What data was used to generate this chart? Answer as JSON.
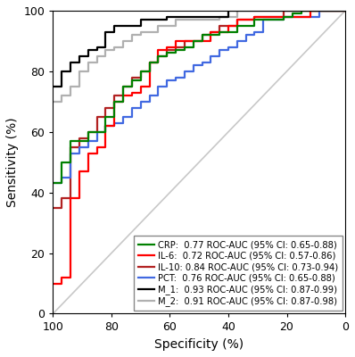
{
  "xlabel": "Specificity (%)",
  "ylabel": "Sensitivity (%)",
  "xlim": [
    100,
    0
  ],
  "ylim": [
    0,
    100
  ],
  "xticks": [
    100,
    80,
    60,
    40,
    20,
    0
  ],
  "yticks": [
    0,
    20,
    40,
    60,
    80,
    100
  ],
  "diagonal_color": "#c8c8c8",
  "curves": {
    "CRP": {
      "color": "#008000",
      "label": "CRP:  0.77 ROC-AUC (95% CI: 0.65-0.88)",
      "spec": [
        100,
        97,
        97,
        94,
        94,
        91,
        91,
        88,
        88,
        85,
        85,
        82,
        82,
        79,
        79,
        76,
        76,
        73,
        73,
        70,
        70,
        67,
        67,
        64,
        64,
        61,
        61,
        58,
        58,
        55,
        55,
        52,
        52,
        49,
        49,
        46,
        46,
        43,
        43,
        40,
        40,
        37,
        37,
        34,
        34,
        31,
        31,
        28,
        28,
        24,
        24,
        21,
        21,
        18,
        18,
        15,
        15,
        12,
        12,
        9,
        9,
        6,
        6,
        3,
        3,
        0
      ],
      "sens": [
        43,
        43,
        50,
        50,
        57,
        57,
        57,
        57,
        60,
        60,
        60,
        60,
        65,
        65,
        70,
        70,
        75,
        75,
        77,
        77,
        80,
        80,
        83,
        83,
        85,
        85,
        86,
        86,
        87,
        87,
        88,
        88,
        90,
        90,
        92,
        92,
        92,
        92,
        93,
        93,
        93,
        93,
        95,
        95,
        95,
        95,
        97,
        97,
        97,
        97,
        97,
        97,
        98,
        98,
        99,
        99,
        100,
        100,
        100,
        100,
        100,
        100,
        100,
        100,
        100,
        100
      ]
    },
    "IL6": {
      "color": "#ff0000",
      "label": "IL-6:  0.72 ROC-AUC (95% CI: 0.57-0.86)",
      "spec": [
        100,
        97,
        97,
        94,
        94,
        91,
        91,
        88,
        88,
        85,
        85,
        82,
        82,
        79,
        79,
        76,
        76,
        73,
        73,
        70,
        70,
        67,
        67,
        64,
        64,
        61,
        61,
        58,
        58,
        52,
        52,
        46,
        46,
        40,
        40,
        37,
        37,
        34,
        34,
        31,
        31,
        28,
        28,
        25,
        25,
        21,
        21,
        18,
        18,
        12,
        12,
        9,
        9,
        6,
        6,
        3,
        3,
        0
      ],
      "sens": [
        10,
        10,
        12,
        12,
        38,
        38,
        47,
        47,
        53,
        53,
        55,
        55,
        62,
        62,
        70,
        70,
        72,
        72,
        73,
        73,
        75,
        75,
        83,
        83,
        87,
        87,
        88,
        88,
        90,
        90,
        90,
        90,
        93,
        93,
        95,
        95,
        97,
        97,
        97,
        97,
        98,
        98,
        98,
        98,
        98,
        98,
        98,
        98,
        98,
        98,
        100,
        100,
        100,
        100,
        100,
        100,
        100,
        100
      ]
    },
    "IL10": {
      "color": "#b22222",
      "label": "IL-10: 0.84 ROC-AUC (95% CI: 0.73-0.94)",
      "spec": [
        100,
        97,
        97,
        94,
        94,
        91,
        91,
        88,
        88,
        85,
        85,
        82,
        82,
        79,
        79,
        76,
        76,
        73,
        73,
        70,
        70,
        67,
        67,
        64,
        64,
        61,
        61,
        58,
        58,
        55,
        55,
        52,
        52,
        49,
        49,
        46,
        46,
        43,
        43,
        37,
        37,
        34,
        34,
        31,
        31,
        25,
        25,
        21,
        21,
        18,
        18,
        12,
        12,
        6,
        6,
        0
      ],
      "sens": [
        35,
        35,
        38,
        38,
        55,
        55,
        58,
        58,
        60,
        60,
        65,
        65,
        68,
        68,
        72,
        72,
        75,
        75,
        78,
        78,
        80,
        80,
        83,
        83,
        85,
        85,
        87,
        87,
        88,
        88,
        90,
        90,
        90,
        90,
        92,
        92,
        93,
        93,
        95,
        95,
        97,
        97,
        97,
        97,
        98,
        98,
        98,
        98,
        100,
        100,
        100,
        100,
        100,
        100,
        100,
        100
      ]
    },
    "PCT": {
      "color": "#4169e1",
      "label": "PCT:  0.76 ROC-AUC (95% CI: 0.65-0.88)",
      "spec": [
        100,
        97,
        97,
        94,
        94,
        91,
        91,
        88,
        88,
        85,
        85,
        82,
        82,
        79,
        79,
        76,
        76,
        73,
        73,
        70,
        70,
        67,
        67,
        64,
        64,
        61,
        61,
        58,
        58,
        55,
        55,
        52,
        52,
        49,
        49,
        46,
        46,
        43,
        43,
        40,
        40,
        37,
        37,
        34,
        34,
        31,
        31,
        28,
        28,
        24,
        24,
        21,
        21,
        18,
        18,
        15,
        15,
        12,
        12,
        9,
        9,
        3,
        3,
        0
      ],
      "sens": [
        43,
        43,
        45,
        45,
        53,
        53,
        55,
        55,
        57,
        57,
        60,
        60,
        62,
        62,
        63,
        63,
        65,
        65,
        68,
        68,
        70,
        70,
        72,
        72,
        75,
        75,
        77,
        77,
        78,
        78,
        80,
        80,
        82,
        82,
        83,
        83,
        85,
        85,
        87,
        87,
        88,
        88,
        90,
        90,
        92,
        92,
        93,
        93,
        97,
        97,
        97,
        97,
        98,
        98,
        98,
        98,
        98,
        98,
        98,
        98,
        100,
        100,
        100,
        100
      ]
    },
    "M1": {
      "color": "#000000",
      "label": "M_1:  0.93 ROC-AUC (95% CI: 0.87-0.99)",
      "spec": [
        100,
        97,
        97,
        94,
        94,
        91,
        91,
        88,
        88,
        85,
        85,
        82,
        82,
        79,
        79,
        73,
        73,
        70,
        70,
        67,
        67,
        64,
        64,
        61,
        61,
        58,
        58,
        55,
        55,
        52,
        52,
        49,
        49,
        46,
        46,
        43,
        43,
        40,
        40,
        37,
        37,
        30,
        30,
        0
      ],
      "sens": [
        75,
        75,
        80,
        80,
        83,
        83,
        85,
        85,
        87,
        87,
        88,
        88,
        93,
        93,
        95,
        95,
        95,
        95,
        97,
        97,
        97,
        97,
        97,
        97,
        98,
        98,
        98,
        98,
        98,
        98,
        98,
        98,
        98,
        98,
        98,
        98,
        98,
        98,
        100,
        100,
        100,
        100,
        100,
        100
      ]
    },
    "M2": {
      "color": "#b0b0b0",
      "label": "M_2:  0.91 ROC-AUC (95% CI: 0.87-0.98)",
      "spec": [
        100,
        97,
        97,
        94,
        94,
        91,
        91,
        88,
        88,
        85,
        85,
        82,
        82,
        79,
        79,
        76,
        76,
        73,
        73,
        70,
        70,
        67,
        67,
        64,
        64,
        61,
        61,
        58,
        58,
        52,
        52,
        46,
        46,
        43,
        43,
        40,
        40,
        37,
        37,
        34,
        34,
        30,
        30,
        0
      ],
      "sens": [
        70,
        70,
        72,
        72,
        75,
        75,
        80,
        80,
        83,
        83,
        85,
        85,
        87,
        87,
        88,
        88,
        90,
        90,
        92,
        92,
        93,
        93,
        93,
        93,
        95,
        95,
        95,
        95,
        97,
        97,
        97,
        97,
        97,
        97,
        98,
        98,
        98,
        98,
        100,
        100,
        100,
        100,
        100,
        100
      ]
    }
  },
  "legend_fontsize": 7.2,
  "axis_fontsize": 10,
  "tick_fontsize": 9,
  "linewidth": 1.6
}
